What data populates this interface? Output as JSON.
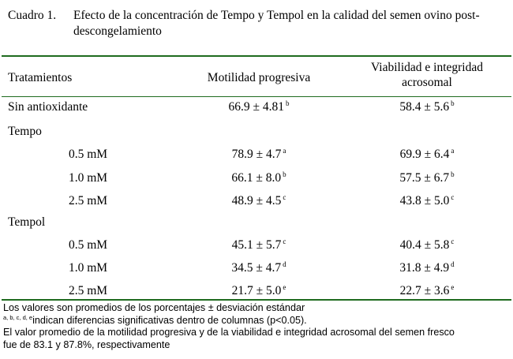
{
  "caption": {
    "label": "Cuadro 1.",
    "text": "Efecto de la  concentración de Tempo y Tempol en la calidad del semen ovino post-descongelamiento"
  },
  "table": {
    "headers": {
      "treatments": "Tratamientos",
      "motility": "Motilidad progresiva",
      "viability": "Viabilidad e integridad acrosomal"
    },
    "rows": [
      {
        "label": "Sin antioxidante",
        "motility": "66.9 ± 4.81",
        "mot_sup": "b",
        "viability": "58.4 ± 5.6",
        "via_sup": "b"
      },
      {
        "label": "Tempo"
      },
      {
        "label": "0.5 mM",
        "motility": "78.9 ± 4.7",
        "mot_sup": "a",
        "viability": "69.9 ± 6.4",
        "via_sup": "a"
      },
      {
        "label": "1.0 mM",
        "motility": "66.1 ± 8.0",
        "mot_sup": "b",
        "viability": "57.5 ± 6.7",
        "via_sup": "b"
      },
      {
        "label": "2.5 mM",
        "motility": "48.9 ± 4.5",
        "mot_sup": "c",
        "viability": "43.8 ± 5.0",
        "via_sup": "c"
      },
      {
        "label": "Tempol"
      },
      {
        "label": "0.5 mM",
        "motility": "45.1 ± 5.7",
        "mot_sup": "c",
        "viability": "40.4 ± 5.8",
        "via_sup": "c"
      },
      {
        "label": "1.0 mM",
        "motility": "34.5 ± 4.7",
        "mot_sup": "d",
        "viability": "31.8 ± 4.9",
        "via_sup": "d"
      },
      {
        "label": "2.5 mM",
        "motility": "21.7 ± 5.0",
        "mot_sup": "e",
        "viability": "22.7 ± 3.6",
        "via_sup": "e"
      }
    ]
  },
  "notes": {
    "line1": "Los valores son promedios de los porcentajes ±  desviación estándar",
    "line2_sup": "a, b, c, d, e",
    "line2": "indican diferencias significativas dentro de columnas (p<0.05).",
    "line3": "El valor promedio de la motilidad progresiva y de la viabilidad e integridad acrosomal del semen fresco",
    "line4": "fue de 83.1 y 87.8%, respectivamente"
  },
  "colors": {
    "rule": "#1f6b1f"
  }
}
